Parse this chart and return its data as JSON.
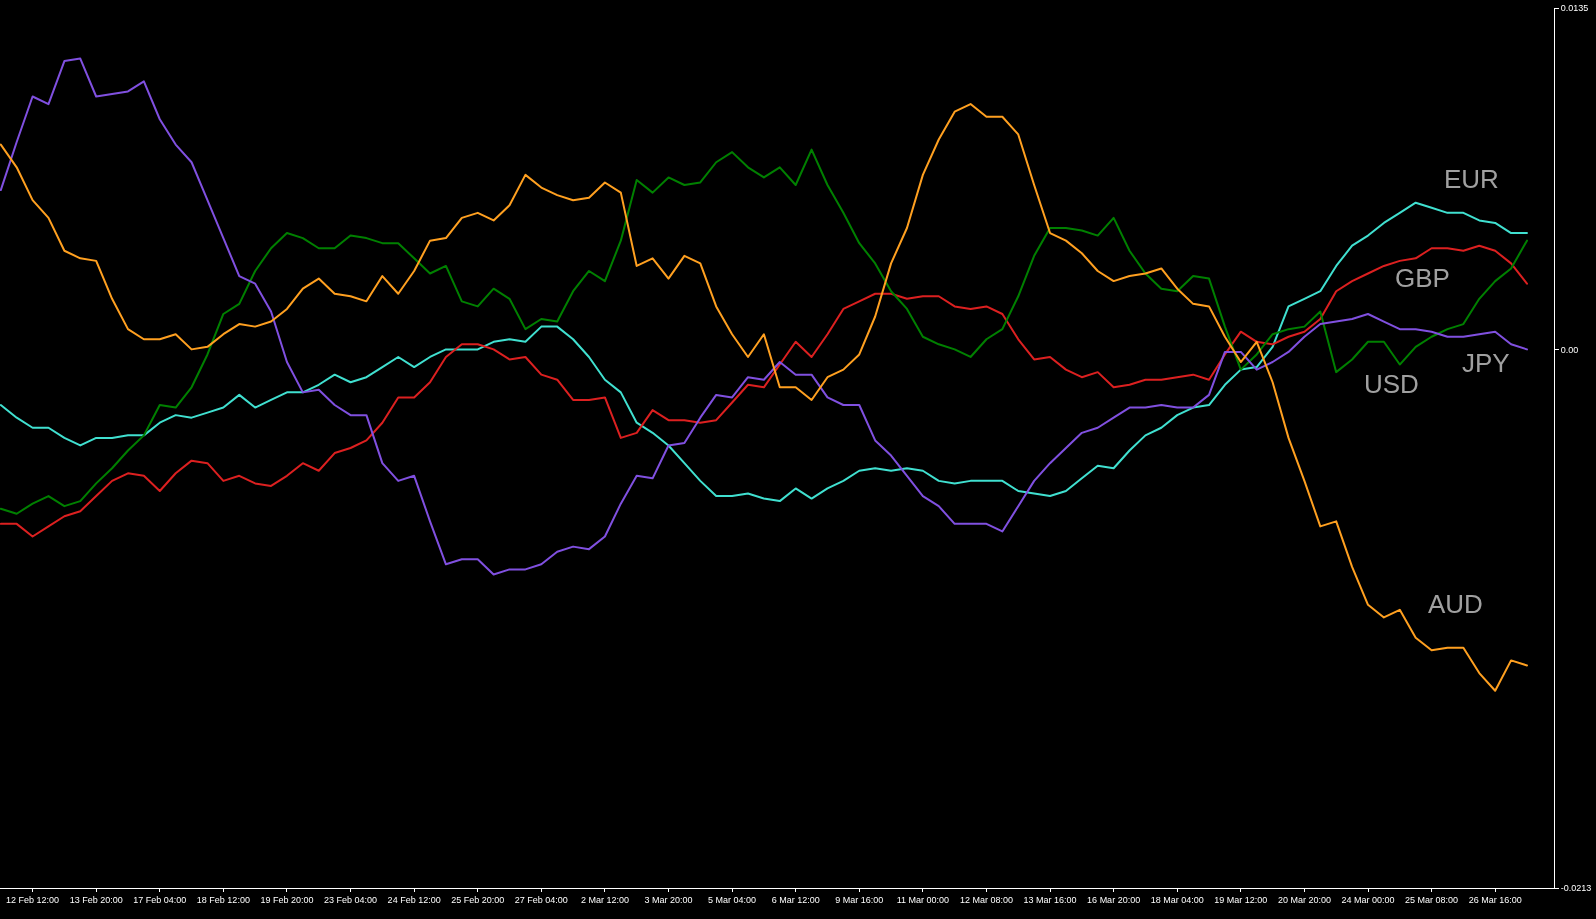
{
  "chart_data": {
    "type": "line",
    "categories": [
      null,
      null,
      "12 Feb 12:00",
      null,
      null,
      null,
      "13 Feb 20:00",
      null,
      null,
      null,
      "17 Feb 04:00",
      null,
      null,
      null,
      "18 Feb 12:00",
      null,
      null,
      null,
      "19 Feb 20:00",
      null,
      null,
      null,
      "23 Feb 04:00",
      null,
      null,
      null,
      "24 Feb 12:00",
      null,
      null,
      null,
      "25 Feb 20:00",
      null,
      null,
      null,
      "27 Feb 04:00",
      null,
      null,
      null,
      "2 Mar 12:00",
      null,
      null,
      null,
      "3 Mar 20:00",
      null,
      null,
      null,
      "5 Mar 04:00",
      null,
      null,
      null,
      "6 Mar 12:00",
      null,
      null,
      null,
      "9 Mar 16:00",
      null,
      null,
      null,
      "11 Mar 00:00",
      null,
      null,
      null,
      "12 Mar 08:00",
      null,
      null,
      null,
      "13 Mar 16:00",
      null,
      null,
      null,
      "16 Mar 20:00",
      null,
      null,
      null,
      "18 Mar 04:00",
      null,
      null,
      null,
      "19 Mar 12:00",
      null,
      null,
      null,
      "20 Mar 20:00",
      null,
      null,
      null,
      "24 Mar 00:00",
      null,
      null,
      null,
      "25 Mar 08:00",
      null,
      null,
      null,
      "26 Mar 16:00",
      null,
      null
    ],
    "ylim": [
      -0.0213,
      0.0135
    ],
    "yticks": [
      0.0135,
      {
        "value": 0,
        "label": "0.00"
      },
      -0.0213
    ],
    "series": [
      {
        "name": "EUR",
        "color": "#40e0d0",
        "values": [
          -0.0022,
          -0.0027,
          -0.0031,
          -0.0031,
          -0.0035,
          -0.0038,
          -0.0035,
          -0.0035,
          -0.0034,
          -0.0034,
          -0.0029,
          -0.0026,
          -0.0027,
          -0.0025,
          -0.0023,
          -0.0018,
          -0.0023,
          -0.002,
          -0.0017,
          -0.0017,
          -0.0014,
          -0.001,
          -0.0013,
          -0.0011,
          -0.0007,
          -0.0003,
          -0.0007,
          -0.0003,
          0.0,
          0.0,
          0.0,
          0.0003,
          0.0004,
          0.0003,
          0.0009,
          0.0009,
          0.0004,
          -0.0003,
          -0.0012,
          -0.0017,
          -0.0029,
          -0.0033,
          -0.0038,
          -0.0045,
          -0.0052,
          -0.0058,
          -0.0058,
          -0.0057,
          -0.0059,
          -0.006,
          -0.0055,
          -0.0059,
          -0.0055,
          -0.0052,
          -0.0048,
          -0.0047,
          -0.0048,
          -0.0047,
          -0.0048,
          -0.0052,
          -0.0053,
          -0.0052,
          -0.0052,
          -0.0052,
          -0.0056,
          -0.0057,
          -0.0058,
          -0.0056,
          -0.0051,
          -0.0046,
          -0.0047,
          -0.004,
          -0.0034,
          -0.0031,
          -0.0026,
          -0.0023,
          -0.0022,
          -0.0014,
          -0.0008,
          -0.0007,
          0.0001,
          0.0017,
          0.002,
          0.0023,
          0.0033,
          0.0041,
          0.0045,
          0.005,
          0.0054,
          0.0058,
          0.0056,
          0.0054,
          0.0054,
          0.0051,
          0.005,
          0.0046,
          0.0046
        ]
      },
      {
        "name": "GBP",
        "color": "#dc2020",
        "values": [
          -0.0069,
          -0.0069,
          -0.0074,
          -0.007,
          -0.0066,
          -0.0064,
          -0.0058,
          -0.0052,
          -0.0049,
          -0.005,
          -0.0056,
          -0.0049,
          -0.0044,
          -0.0045,
          -0.0052,
          -0.005,
          -0.0053,
          -0.0054,
          -0.005,
          -0.0045,
          -0.0048,
          -0.0041,
          -0.0039,
          -0.0036,
          -0.0029,
          -0.0019,
          -0.0019,
          -0.0013,
          -0.0003,
          0.0002,
          0.0002,
          0.0,
          -0.0004,
          -0.0003,
          -0.001,
          -0.0012,
          -0.002,
          -0.002,
          -0.0019,
          -0.0035,
          -0.0033,
          -0.0024,
          -0.0028,
          -0.0028,
          -0.0029,
          -0.0028,
          -0.0021,
          -0.0014,
          -0.0015,
          -0.0006,
          0.0003,
          -0.0003,
          0.0006,
          0.0016,
          0.0019,
          0.0022,
          0.0022,
          0.002,
          0.0021,
          0.0021,
          0.0017,
          0.0016,
          0.0017,
          0.0014,
          0.0004,
          -0.0004,
          -0.0003,
          -0.0008,
          -0.0011,
          -0.0009,
          -0.0015,
          -0.0014,
          -0.0012,
          -0.0012,
          -0.0011,
          -0.001,
          -0.0012,
          -0.0002,
          0.0007,
          0.0003,
          0.0002,
          0.0005,
          0.0007,
          0.0012,
          0.0023,
          0.0027,
          0.003,
          0.0033,
          0.0035,
          0.0036,
          0.004,
          0.004,
          0.0039,
          0.0041,
          0.0039,
          0.0034,
          0.0026
        ]
      },
      {
        "name": "USD",
        "color": "#008000",
        "values": [
          -0.0063,
          -0.0065,
          -0.0061,
          -0.0058,
          -0.0062,
          -0.006,
          -0.0053,
          -0.0047,
          -0.004,
          -0.0034,
          -0.0022,
          -0.0023,
          -0.0015,
          -0.0002,
          0.0014,
          0.0018,
          0.0031,
          0.004,
          0.0046,
          0.0044,
          0.004,
          0.004,
          0.0045,
          0.0044,
          0.0042,
          0.0042,
          0.0036,
          0.003,
          0.0033,
          0.0019,
          0.0017,
          0.0024,
          0.002,
          0.0008,
          0.0012,
          0.0011,
          0.0023,
          0.0031,
          0.0027,
          0.0043,
          0.0067,
          0.0062,
          0.0068,
          0.0065,
          0.0066,
          0.0074,
          0.0078,
          0.0072,
          0.0068,
          0.0072,
          0.0065,
          0.0079,
          0.0065,
          0.0054,
          0.0042,
          0.0034,
          0.0023,
          0.0016,
          0.0005,
          0.0002,
          0.0,
          -0.0003,
          0.0004,
          0.0008,
          0.0021,
          0.0037,
          0.0048,
          0.0048,
          0.0047,
          0.0045,
          0.0052,
          0.0039,
          0.003,
          0.0024,
          0.0023,
          0.0029,
          0.0028,
          0.0009,
          -0.0008,
          -0.0002,
          0.0006,
          0.0008,
          0.0009,
          0.0015,
          -0.0009,
          -0.0004,
          0.0003,
          0.0003,
          -0.0006,
          0.0001,
          0.0005,
          0.0008,
          0.001,
          0.002,
          0.0027,
          0.0032,
          0.0043
        ]
      },
      {
        "name": "JPY",
        "color": "#8050e0",
        "values": [
          0.0063,
          0.0082,
          0.01,
          0.0097,
          0.0114,
          0.0115,
          0.01,
          0.0101,
          0.0102,
          0.0106,
          0.0091,
          0.0081,
          0.0074,
          0.0059,
          0.0044,
          0.0029,
          0.0026,
          0.0015,
          -0.0005,
          -0.0017,
          -0.0016,
          -0.0022,
          -0.0026,
          -0.0026,
          -0.0045,
          -0.0052,
          -0.005,
          -0.0068,
          -0.0085,
          -0.0083,
          -0.0083,
          -0.0089,
          -0.0087,
          -0.0087,
          -0.0085,
          -0.008,
          -0.0078,
          -0.0079,
          -0.0074,
          -0.0061,
          -0.005,
          -0.0051,
          -0.0038,
          -0.0037,
          -0.0027,
          -0.0018,
          -0.0019,
          -0.0011,
          -0.0012,
          -0.0005,
          -0.001,
          -0.001,
          -0.0019,
          -0.0022,
          -0.0022,
          -0.0036,
          -0.0042,
          -0.005,
          -0.0058,
          -0.0062,
          -0.0069,
          -0.0069,
          -0.0069,
          -0.0072,
          -0.0062,
          -0.0052,
          -0.0045,
          -0.0039,
          -0.0033,
          -0.0031,
          -0.0027,
          -0.0023,
          -0.0023,
          -0.0022,
          -0.0023,
          -0.0023,
          -0.0018,
          -0.0001,
          -0.0001,
          -0.0008,
          -0.0005,
          -0.0001,
          0.0005,
          0.001,
          0.0011,
          0.0012,
          0.0014,
          0.0011,
          0.0008,
          0.0008,
          0.0007,
          0.0005,
          0.0005,
          0.0006,
          0.0007,
          0.0002,
          0.0
        ]
      },
      {
        "name": "AUD",
        "color": "#ffa020",
        "values": [
          0.0081,
          0.0072,
          0.0059,
          0.0052,
          0.0039,
          0.0036,
          0.0035,
          0.002,
          0.0008,
          0.0004,
          0.0004,
          0.0006,
          0.0,
          0.0001,
          0.0006,
          0.001,
          0.0009,
          0.0011,
          0.0016,
          0.0024,
          0.0028,
          0.0022,
          0.0021,
          0.0019,
          0.0029,
          0.0022,
          0.0031,
          0.0043,
          0.0044,
          0.0052,
          0.0054,
          0.0051,
          0.0057,
          0.0069,
          0.0064,
          0.0061,
          0.0059,
          0.006,
          0.0066,
          0.0062,
          0.0033,
          0.0036,
          0.0028,
          0.0037,
          0.0034,
          0.0017,
          0.0006,
          -0.0003,
          0.0006,
          -0.0015,
          -0.0015,
          -0.002,
          -0.0011,
          -0.0008,
          -0.0002,
          0.0013,
          0.0034,
          0.0048,
          0.0069,
          0.0083,
          0.0094,
          0.0097,
          0.0092,
          0.0092,
          0.0085,
          0.0065,
          0.0046,
          0.0043,
          0.0038,
          0.0031,
          0.0027,
          0.0029,
          0.003,
          0.0032,
          0.0024,
          0.0018,
          0.0017,
          0.0005,
          -0.0005,
          0.0003,
          -0.0013,
          -0.0035,
          -0.0052,
          -0.007,
          -0.0068,
          -0.0086,
          -0.0101,
          -0.0106,
          -0.0103,
          -0.0114,
          -0.0119,
          -0.0118,
          -0.0118,
          -0.0128,
          -0.0135,
          -0.0123,
          -0.0125
        ]
      }
    ]
  }
}
